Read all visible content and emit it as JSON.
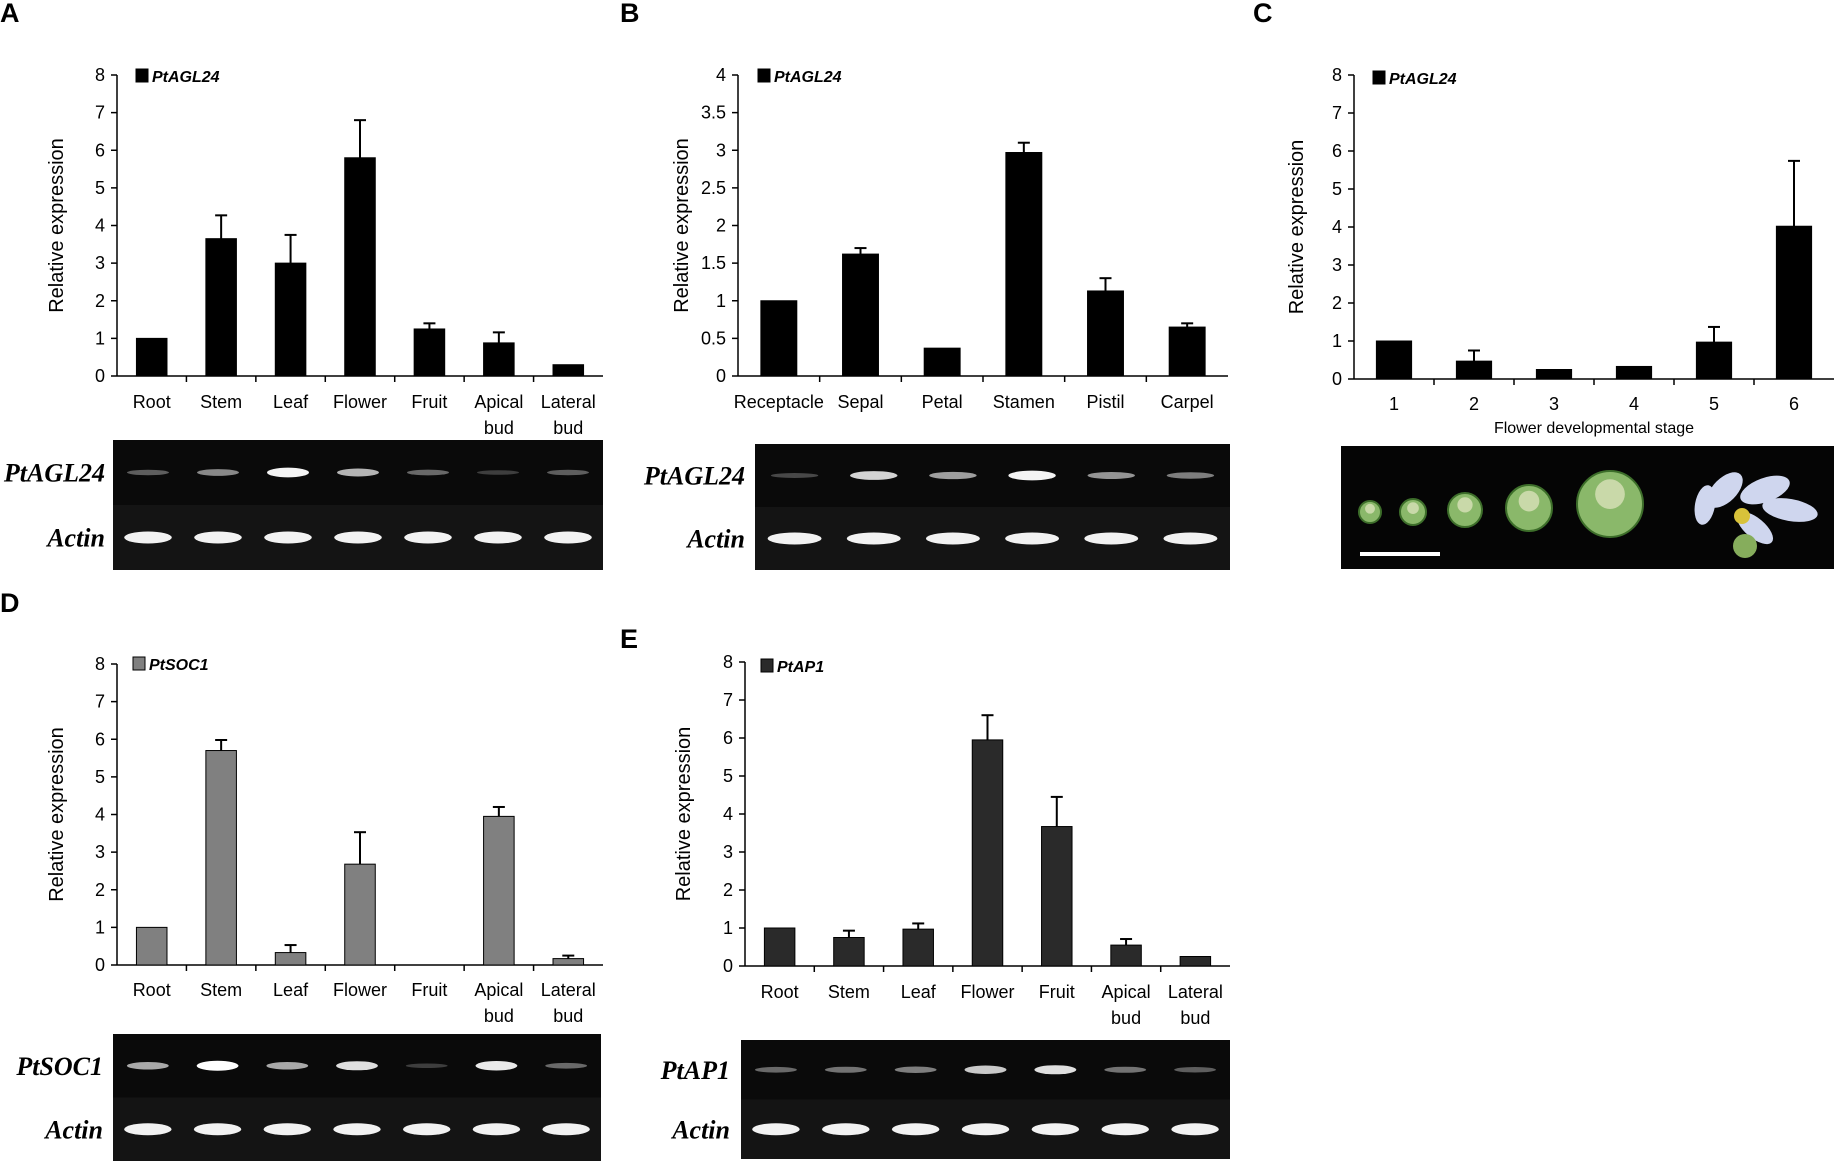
{
  "chart_data": [
    {
      "panel": "A",
      "type": "bar",
      "legend": "PtAGL24",
      "color": "#000000",
      "ylabel": "Relative expression",
      "xlabel": "",
      "ylim": [
        0,
        8
      ],
      "yticks": [
        "0",
        "1",
        "2",
        "3",
        "4",
        "5",
        "6",
        "7",
        "8"
      ],
      "categories": [
        [
          "Root"
        ],
        [
          "Stem"
        ],
        [
          "Leaf"
        ],
        [
          "Flower"
        ],
        [
          "Fruit"
        ],
        [
          "Apical",
          "bud"
        ],
        [
          "Lateral",
          "bud"
        ]
      ],
      "values": [
        1.0,
        3.65,
        3.0,
        5.8,
        1.25,
        0.88,
        0.3
      ],
      "errors": [
        0,
        0.62,
        0.75,
        1.0,
        0.15,
        0.28,
        0
      ],
      "gel": {
        "rows": [
          "PtAGL24",
          "Actin"
        ],
        "target_intensity": [
          0.25,
          0.45,
          0.95,
          0.65,
          0.3,
          0.1,
          0.25
        ]
      }
    },
    {
      "panel": "B",
      "type": "bar",
      "legend": "PtAGL24",
      "color": "#000000",
      "ylabel": "Relative expression",
      "xlabel": "",
      "ylim": [
        0,
        4
      ],
      "yticks": [
        "0",
        "0.5",
        "1",
        "1.5",
        "2",
        "2.5",
        "3",
        "3.5",
        "4"
      ],
      "categories": [
        [
          "Receptacle"
        ],
        [
          "Sepal"
        ],
        [
          "Petal"
        ],
        [
          "Stamen"
        ],
        [
          "Pistil"
        ],
        [
          "Carpel"
        ]
      ],
      "values": [
        1.0,
        1.62,
        0.37,
        2.97,
        1.13,
        0.65
      ],
      "errors": [
        0,
        0.08,
        0,
        0.13,
        0.17,
        0.05
      ],
      "gel": {
        "rows": [
          "PtAGL24",
          "Actin"
        ],
        "target_intensity": [
          0.15,
          0.8,
          0.55,
          0.95,
          0.5,
          0.4
        ]
      }
    },
    {
      "panel": "C",
      "type": "bar",
      "legend": "PtAGL24",
      "color": "#000000",
      "ylabel": "Relative expression",
      "xlabel": "Flower developmental stage",
      "ylim": [
        0,
        8
      ],
      "yticks": [
        "0",
        "1",
        "2",
        "3",
        "4",
        "5",
        "6",
        "7",
        "8"
      ],
      "categories": [
        [
          "1"
        ],
        [
          "2"
        ],
        [
          "3"
        ],
        [
          "4"
        ],
        [
          "5"
        ],
        [
          "6"
        ]
      ],
      "values": [
        1.0,
        0.47,
        0.25,
        0.33,
        0.97,
        4.02
      ],
      "errors": [
        0,
        0.28,
        0,
        0,
        0.4,
        1.72
      ]
    },
    {
      "panel": "D",
      "type": "bar",
      "legend": "PtSOC1",
      "color": "#808080",
      "ylabel": "Relative expression",
      "xlabel": "",
      "ylim": [
        0,
        8
      ],
      "yticks": [
        "0",
        "1",
        "2",
        "3",
        "4",
        "5",
        "6",
        "7",
        "8"
      ],
      "categories": [
        [
          "Root"
        ],
        [
          "Stem"
        ],
        [
          "Leaf"
        ],
        [
          "Flower"
        ],
        [
          "Fruit"
        ],
        [
          "Apical",
          "bud"
        ],
        [
          "Lateral",
          "bud"
        ]
      ],
      "values": [
        1.0,
        5.7,
        0.33,
        2.68,
        0.0,
        3.95,
        0.17
      ],
      "errors": [
        0,
        0.28,
        0.2,
        0.85,
        0,
        0.25,
        0.08
      ],
      "gel": {
        "rows": [
          "PtSOC1",
          "Actin"
        ],
        "target_intensity": [
          0.6,
          1.0,
          0.6,
          0.85,
          0.1,
          0.9,
          0.3
        ]
      }
    },
    {
      "panel": "E",
      "type": "bar",
      "legend": "PtAP1",
      "color": "#2a2a2a",
      "ylabel": "Relative expression",
      "xlabel": "",
      "ylim": [
        0,
        8
      ],
      "yticks": [
        "0",
        "1",
        "2",
        "3",
        "4",
        "5",
        "6",
        "7",
        "8"
      ],
      "categories": [
        [
          "Root"
        ],
        [
          "Stem"
        ],
        [
          "Leaf"
        ],
        [
          "Flower"
        ],
        [
          "Fruit"
        ],
        [
          "Apical",
          "bud"
        ],
        [
          "Lateral",
          "bud"
        ]
      ],
      "values": [
        1.0,
        0.75,
        0.97,
        5.95,
        3.67,
        0.55,
        0.25
      ],
      "errors": [
        0,
        0.18,
        0.15,
        0.65,
        0.78,
        0.16,
        0
      ],
      "gel": {
        "rows": [
          "PtAP1",
          "Actin"
        ],
        "target_intensity": [
          0.3,
          0.35,
          0.4,
          0.75,
          0.85,
          0.35,
          0.25
        ]
      }
    }
  ]
}
